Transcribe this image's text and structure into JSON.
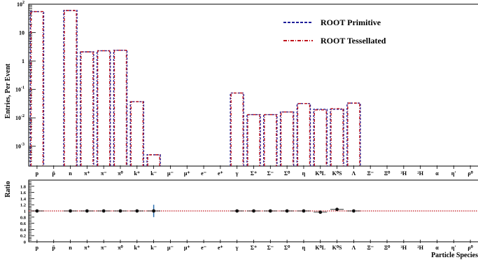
{
  "chart_data": [
    {
      "type": "bar",
      "ylabel": "Entries, Per Event",
      "yscale": "log",
      "ylim": [
        0.0002,
        100
      ],
      "yticks": [
        {
          "value": 0.001,
          "label": "10",
          "exp": "-3"
        },
        {
          "value": 0.01,
          "label": "10",
          "exp": "-2"
        },
        {
          "value": 0.1,
          "label": "10",
          "exp": "-1"
        },
        {
          "value": 1,
          "label": "1",
          "exp": ""
        },
        {
          "value": 10,
          "label": "10",
          "exp": ""
        },
        {
          "value": 100,
          "label": "10",
          "exp": "2"
        }
      ],
      "categories": [
        "p",
        "p̄",
        "n",
        "π⁺",
        "π⁻",
        "π⁰",
        "k⁺",
        "k⁻",
        "μ⁻",
        "μ⁺",
        "e⁻",
        "e⁺",
        "γ",
        "Σ⁺",
        "Σ⁻",
        "Σ⁰",
        "η",
        "K⁰L",
        "K⁰S",
        "Λ",
        "Ξ⁻",
        "Ξ⁰",
        "³H",
        "²H",
        "α",
        "η'",
        "ρ⁰"
      ],
      "series": [
        {
          "name": "ROOT Primitive",
          "color": "#1f1f9a",
          "style": "dashed",
          "values": [
            55,
            0,
            60,
            2.1,
            2.3,
            2.4,
            0.037,
            0.0005,
            0,
            0,
            0,
            0,
            0.075,
            0.013,
            0.013,
            0.016,
            0.032,
            0.02,
            0.02,
            0.033,
            0,
            0,
            0,
            0,
            0,
            0,
            0
          ]
        },
        {
          "name": "ROOT Tessellated",
          "color": "#c0141c",
          "style": "dash-dot",
          "values": [
            55,
            0,
            60,
            2.1,
            2.3,
            2.4,
            0.037,
            0.0005,
            0,
            0,
            0,
            0,
            0.075,
            0.013,
            0.013,
            0.016,
            0.032,
            0.019,
            0.021,
            0.033,
            0,
            0,
            0,
            0,
            0,
            0,
            0
          ]
        }
      ],
      "legend": "top-right"
    },
    {
      "type": "scatter",
      "xlabel": "Particle Species",
      "ylabel": "Ratio",
      "ylim": [
        0,
        2
      ],
      "yticks": [
        "0",
        "0.2",
        "0.4",
        "0.6",
        "0.8",
        "1",
        "1.2",
        "1.4",
        "1.6",
        "1.8"
      ],
      "reference_line": 1,
      "reference_color": "#c0141c",
      "categories": [
        "p",
        "p̄",
        "n",
        "π⁺",
        "π⁻",
        "π⁰",
        "k⁺",
        "k⁻",
        "μ⁻",
        "μ⁺",
        "e⁻",
        "e⁺",
        "γ",
        "Σ⁺",
        "Σ⁻",
        "Σ⁰",
        "η",
        "K⁰L",
        "K⁰S",
        "Λ",
        "Ξ⁻",
        "Ξ⁰",
        "³H",
        "²H",
        "α",
        "η'",
        "ρ⁰"
      ],
      "points": [
        {
          "cat": 0,
          "y": 1.0,
          "err": 0
        },
        {
          "cat": 2,
          "y": 1.0,
          "err": 0
        },
        {
          "cat": 3,
          "y": 1.0,
          "err": 0
        },
        {
          "cat": 4,
          "y": 1.0,
          "err": 0
        },
        {
          "cat": 5,
          "y": 1.0,
          "err": 0
        },
        {
          "cat": 6,
          "y": 1.0,
          "err": 0.02
        },
        {
          "cat": 7,
          "y": 1.0,
          "err": 0.2
        },
        {
          "cat": 12,
          "y": 1.0,
          "err": 0
        },
        {
          "cat": 13,
          "y": 1.0,
          "err": 0
        },
        {
          "cat": 14,
          "y": 1.0,
          "err": 0
        },
        {
          "cat": 15,
          "y": 1.0,
          "err": 0
        },
        {
          "cat": 16,
          "y": 1.0,
          "err": 0
        },
        {
          "cat": 17,
          "y": 0.96,
          "err": 0.02
        },
        {
          "cat": 18,
          "y": 1.05,
          "err": 0.02
        },
        {
          "cat": 19,
          "y": 1.0,
          "err": 0
        }
      ],
      "point_color": "#111111",
      "error_color": "#2a6fb0"
    }
  ]
}
